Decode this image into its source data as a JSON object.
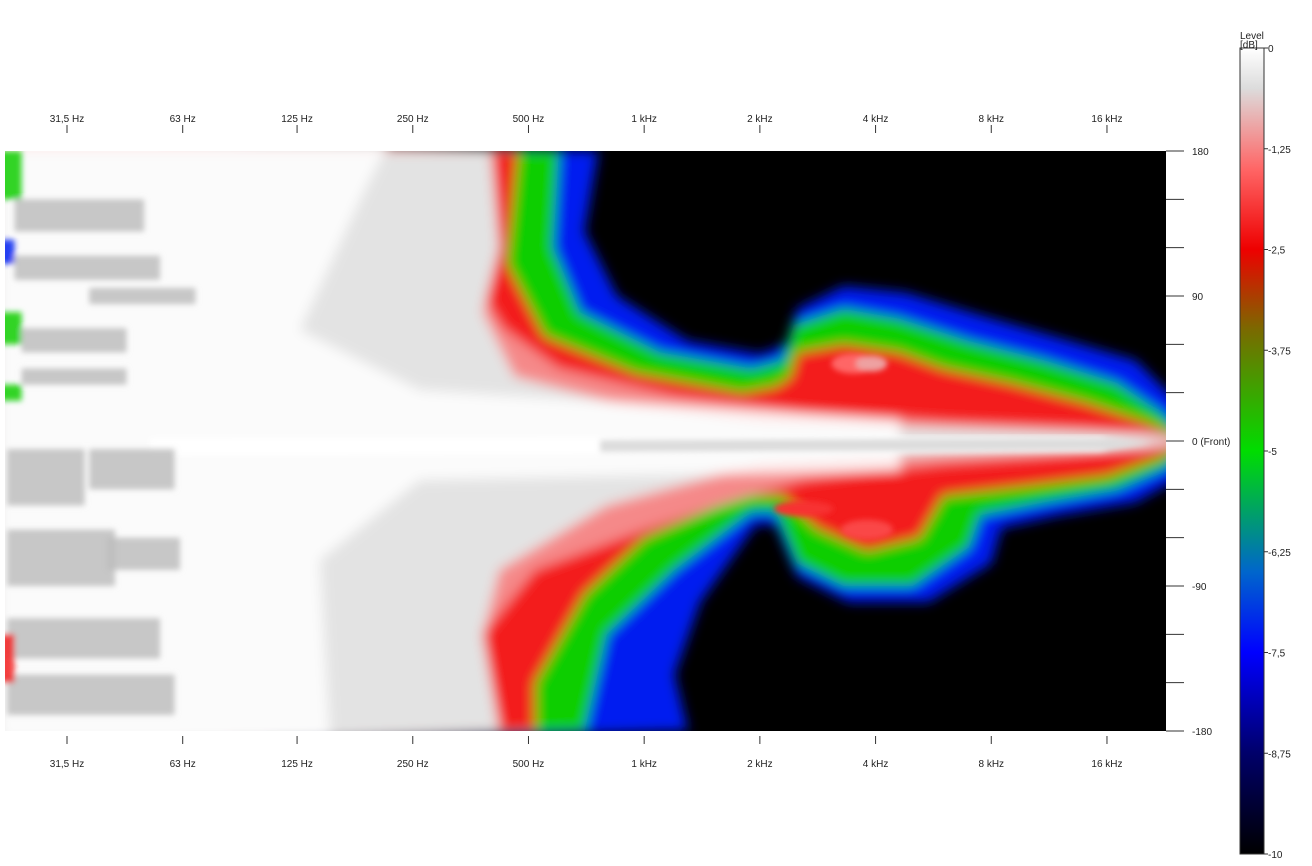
{
  "chart_data": {
    "type": "heatmap",
    "title": "",
    "x_scale": "log2",
    "x_range_hz": [
      20,
      28000
    ],
    "x_ticks": [
      "31,5 Hz",
      "63 Hz",
      "125 Hz",
      "250 Hz",
      "500 Hz",
      "1 kHz",
      "2 kHz",
      "4 kHz",
      "8 kHz",
      "16 kHz"
    ],
    "x_tick_hz": [
      31.5,
      63,
      125,
      250,
      500,
      1000,
      2000,
      4000,
      8000,
      16000
    ],
    "y_range_deg": [
      -180,
      180
    ],
    "y_ticks": [
      {
        "deg": 180,
        "label": "180"
      },
      {
        "deg": 150,
        "label": ""
      },
      {
        "deg": 120,
        "label": ""
      },
      {
        "deg": 90,
        "label": "90"
      },
      {
        "deg": 60,
        "label": ""
      },
      {
        "deg": 30,
        "label": ""
      },
      {
        "deg": 0,
        "label": "0 (Front)"
      },
      {
        "deg": -30,
        "label": ""
      },
      {
        "deg": -60,
        "label": ""
      },
      {
        "deg": -90,
        "label": "-90"
      },
      {
        "deg": -120,
        "label": ""
      },
      {
        "deg": -150,
        "label": ""
      },
      {
        "deg": -180,
        "label": "-180"
      }
    ],
    "colorbar": {
      "title": "Level [dB]",
      "range": [
        -10,
        0
      ],
      "labels": [
        "0",
        "-1,25",
        "-2,5",
        "-3,75",
        "-5",
        "-6,25",
        "-7,5",
        "-8,75",
        "-10"
      ],
      "label_values": [
        0,
        -1.25,
        -2.5,
        -3.75,
        -5,
        -6.25,
        -7.5,
        -8.75,
        -10
      ],
      "stops": [
        {
          "level": 0,
          "color": "#ffffff"
        },
        {
          "level": -0.5,
          "color": "#dcdcdc"
        },
        {
          "level": -1.5,
          "color": "#ff6666"
        },
        {
          "level": -2.5,
          "color": "#ee0000"
        },
        {
          "level": -3.5,
          "color": "#7a6a00"
        },
        {
          "level": -5,
          "color": "#00dd00"
        },
        {
          "level": -6.5,
          "color": "#0066cc"
        },
        {
          "level": -7.5,
          "color": "#0000ff"
        },
        {
          "level": -8.75,
          "color": "#00006a"
        },
        {
          "level": -10,
          "color": "#000000"
        }
      ]
    },
    "contours": [
      {
        "level": -0.4,
        "color": "#ffe6e6",
        "points": [
          [
            20,
            -180
          ],
          [
            20,
            180
          ],
          [
            400,
            180
          ],
          [
            420,
            120
          ],
          [
            380,
            80
          ],
          [
            460,
            40
          ],
          [
            800,
            25
          ],
          [
            2000,
            12
          ],
          [
            6000,
            8
          ],
          [
            20000,
            4
          ],
          [
            26000,
            0
          ],
          [
            20000,
            -4
          ],
          [
            6000,
            -8
          ],
          [
            2000,
            -14
          ],
          [
            800,
            -40
          ],
          [
            420,
            -80
          ],
          [
            380,
            -120
          ],
          [
            420,
            -180
          ]
        ]
      },
      {
        "level": -1.2,
        "color": "#ffb3b3",
        "points": [
          [
            380,
            180
          ],
          [
            400,
            140
          ],
          [
            360,
            100
          ],
          [
            430,
            70
          ],
          [
            600,
            45
          ],
          [
            1200,
            28
          ],
          [
            2600,
            18
          ],
          [
            6000,
            12
          ],
          [
            14000,
            8
          ],
          [
            24000,
            3
          ],
          [
            26000,
            0
          ],
          [
            24000,
            -3
          ],
          [
            14000,
            -8
          ],
          [
            6000,
            -14
          ],
          [
            2600,
            -24
          ],
          [
            1000,
            -55
          ],
          [
            520,
            -80
          ],
          [
            380,
            -120
          ],
          [
            420,
            -180
          ]
        ]
      },
      {
        "level": -2.2,
        "color": "#ee0000",
        "points": [
          [
            470,
            180
          ],
          [
            440,
            110
          ],
          [
            550,
            65
          ],
          [
            950,
            42
          ],
          [
            1800,
            30
          ],
          [
            2200,
            34
          ],
          [
            2400,
            40
          ],
          [
            2500,
            55
          ],
          [
            3300,
            60
          ],
          [
            4600,
            55
          ],
          [
            6000,
            45
          ],
          [
            9000,
            36
          ],
          [
            14000,
            24
          ],
          [
            20000,
            12
          ],
          [
            26000,
            0
          ],
          [
            22000,
            -10
          ],
          [
            16000,
            -22
          ],
          [
            10000,
            -28
          ],
          [
            6000,
            -34
          ],
          [
            5200,
            -60
          ],
          [
            3800,
            -68
          ],
          [
            2800,
            -54
          ],
          [
            2300,
            -34
          ],
          [
            1800,
            -34
          ],
          [
            1000,
            -60
          ],
          [
            700,
            -95
          ],
          [
            520,
            -150
          ],
          [
            520,
            -180
          ]
        ]
      },
      {
        "level": -4.8,
        "color": "#00dd00",
        "points": [
          [
            600,
            180
          ],
          [
            580,
            120
          ],
          [
            680,
            80
          ],
          [
            1100,
            55
          ],
          [
            1900,
            45
          ],
          [
            2300,
            50
          ],
          [
            2450,
            72
          ],
          [
            3300,
            82
          ],
          [
            4600,
            76
          ],
          [
            7000,
            62
          ],
          [
            11000,
            50
          ],
          [
            17000,
            36
          ],
          [
            22000,
            18
          ],
          [
            26000,
            0
          ],
          [
            23000,
            -16
          ],
          [
            17000,
            -30
          ],
          [
            11000,
            -38
          ],
          [
            7500,
            -46
          ],
          [
            7000,
            -66
          ],
          [
            5000,
            -90
          ],
          [
            3300,
            -90
          ],
          [
            2500,
            -76
          ],
          [
            2200,
            -44
          ],
          [
            1900,
            -44
          ],
          [
            1200,
            -80
          ],
          [
            800,
            -120
          ],
          [
            700,
            -180
          ]
        ]
      },
      {
        "level": -7.2,
        "color": "#0000ff",
        "points": [
          [
            760,
            180
          ],
          [
            700,
            130
          ],
          [
            850,
            90
          ],
          [
            1300,
            62
          ],
          [
            2000,
            54
          ],
          [
            2350,
            60
          ],
          [
            2500,
            82
          ],
          [
            3300,
            96
          ],
          [
            4800,
            92
          ],
          [
            7500,
            78
          ],
          [
            12000,
            64
          ],
          [
            19000,
            50
          ],
          [
            24000,
            26
          ],
          [
            26500,
            0
          ],
          [
            25000,
            -22
          ],
          [
            19000,
            -38
          ],
          [
            12000,
            -46
          ],
          [
            8500,
            -54
          ],
          [
            8000,
            -76
          ],
          [
            5500,
            -100
          ],
          [
            3400,
            -100
          ],
          [
            2500,
            -84
          ],
          [
            2200,
            -52
          ],
          [
            1950,
            -52
          ],
          [
            1400,
            -100
          ],
          [
            1200,
            -145
          ],
          [
            1300,
            -180
          ]
        ]
      }
    ],
    "spots": [
      {
        "hz": 3500,
        "deg": 48,
        "rx": 22,
        "ry": 10,
        "level": -1.5
      },
      {
        "hz": 3900,
        "deg": 48,
        "rx": 16,
        "ry": 8,
        "level": -1.0
      },
      {
        "hz": 3800,
        "deg": -55,
        "rx": 26,
        "ry": 10,
        "level": -1.8
      },
      {
        "hz": 2600,
        "deg": -42,
        "rx": 30,
        "ry": 8,
        "level": -2.0
      }
    ],
    "gray_blocks": [
      {
        "hz": [
          23,
          50
        ],
        "deg": [
          150,
          130
        ],
        "level": -0.6
      },
      {
        "hz": [
          23,
          55
        ],
        "deg": [
          115,
          100
        ],
        "level": -0.6
      },
      {
        "hz": [
          36,
          68
        ],
        "deg": [
          95,
          85
        ],
        "level": -0.6
      },
      {
        "hz": [
          24,
          45
        ],
        "deg": [
          70,
          55
        ],
        "level": -0.6
      },
      {
        "hz": [
          24,
          45
        ],
        "deg": [
          45,
          35
        ],
        "level": -0.6
      },
      {
        "hz": [
          22,
          35
        ],
        "deg": [
          -5,
          -40
        ],
        "level": -0.6
      },
      {
        "hz": [
          36,
          60
        ],
        "deg": [
          -5,
          -30
        ],
        "level": -0.6
      },
      {
        "hz": [
          22,
          42
        ],
        "deg": [
          -55,
          -90
        ],
        "level": -0.6
      },
      {
        "hz": [
          40,
          62
        ],
        "deg": [
          -60,
          -80
        ],
        "level": -0.6
      },
      {
        "hz": [
          22,
          55
        ],
        "deg": [
          -110,
          -135
        ],
        "level": -0.6
      },
      {
        "hz": [
          22,
          60
        ],
        "deg": [
          -145,
          -170
        ],
        "level": -0.6
      }
    ],
    "edge_noise": [
      {
        "hz": [
          20,
          24
        ],
        "deg": [
          180,
          150
        ],
        "level": -4.8
      },
      {
        "hz": [
          20,
          23
        ],
        "deg": [
          125,
          110
        ],
        "level": -7.2
      },
      {
        "hz": [
          20,
          24
        ],
        "deg": [
          80,
          60
        ],
        "level": -4.8
      },
      {
        "hz": [
          20,
          24
        ],
        "deg": [
          35,
          25
        ],
        "level": -4.8
      },
      {
        "hz": [
          20,
          23
        ],
        "deg": [
          -120,
          -150
        ],
        "level": -2.2
      }
    ],
    "ridge": [
      [
        150,
        -0.5,
        0
      ],
      [
        1000,
        -0.4,
        0
      ],
      [
        8000,
        -0.5,
        0
      ],
      [
        22000,
        -0.8,
        0
      ]
    ],
    "grid": false,
    "legend": "colorbar-right"
  }
}
